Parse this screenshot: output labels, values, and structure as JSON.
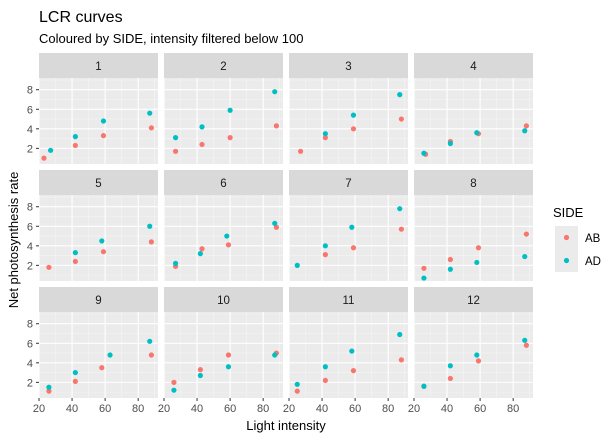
{
  "chart_data": {
    "type": "scatter",
    "title": "LCR curves",
    "subtitle": "Coloured by SIDE, intensity filtered below 100",
    "xlabel": "Light intensity",
    "ylabel": "Net photosynthesis rate",
    "xlim": [
      20,
      92
    ],
    "ylim": [
      0.4,
      9.2
    ],
    "x_ticks": [
      20,
      40,
      60,
      80
    ],
    "y_ticks": [
      2,
      4,
      6,
      8
    ],
    "grid": true,
    "facet_layout": "3 rows x 4 columns",
    "legend": {
      "title": "SIDE",
      "placement": "right",
      "entries": [
        {
          "label": "AB",
          "color": "#F8766D"
        },
        {
          "label": "AD",
          "color": "#00BFC4"
        }
      ]
    },
    "facets": [
      {
        "label": "1",
        "series": [
          {
            "name": "AB",
            "points": [
              [
                23,
                1.0
              ],
              [
                42,
                2.3
              ],
              [
                59,
                3.3
              ],
              [
                88,
                4.1
              ]
            ]
          },
          {
            "name": "AD",
            "points": [
              [
                27,
                1.8
              ],
              [
                42,
                3.2
              ],
              [
                59,
                4.8
              ],
              [
                87,
                5.6
              ]
            ]
          }
        ]
      },
      {
        "label": "2",
        "series": [
          {
            "name": "AB",
            "points": [
              [
                27,
                1.7
              ],
              [
                43,
                2.4
              ],
              [
                60,
                3.1
              ],
              [
                88,
                4.3
              ]
            ]
          },
          {
            "name": "AD",
            "points": [
              [
                27,
                3.1
              ],
              [
                43,
                4.2
              ],
              [
                60,
                5.9
              ],
              [
                87,
                7.8
              ]
            ]
          }
        ]
      },
      {
        "label": "3",
        "series": [
          {
            "name": "AB",
            "points": [
              [
                27,
                1.7
              ],
              [
                42,
                3.1
              ],
              [
                59,
                4.0
              ],
              [
                88,
                5.0
              ]
            ]
          },
          {
            "name": "AD",
            "points": [
              [
                42,
                3.5
              ],
              [
                59,
                5.4
              ],
              [
                87,
                7.5
              ]
            ]
          }
        ]
      },
      {
        "label": "4",
        "series": [
          {
            "name": "AB",
            "points": [
              [
                27,
                1.4
              ],
              [
                42,
                2.7
              ],
              [
                59,
                3.5
              ],
              [
                88,
                4.3
              ]
            ]
          },
          {
            "name": "AD",
            "points": [
              [
                26,
                1.5
              ],
              [
                42,
                2.5
              ],
              [
                58,
                3.6
              ],
              [
                87,
                3.8
              ]
            ]
          }
        ]
      },
      {
        "label": "5",
        "series": [
          {
            "name": "AB",
            "points": [
              [
                26,
                1.8
              ],
              [
                42,
                2.4
              ],
              [
                59,
                3.4
              ],
              [
                88,
                4.4
              ]
            ]
          },
          {
            "name": "AD",
            "points": [
              [
                42,
                3.3
              ],
              [
                58,
                4.5
              ],
              [
                87,
                6.0
              ]
            ]
          }
        ]
      },
      {
        "label": "6",
        "series": [
          {
            "name": "AB",
            "points": [
              [
                27,
                1.9
              ],
              [
                43,
                3.7
              ],
              [
                59,
                4.1
              ],
              [
                88,
                5.9
              ]
            ]
          },
          {
            "name": "AD",
            "points": [
              [
                27,
                2.2
              ],
              [
                42,
                3.2
              ],
              [
                58,
                5.0
              ],
              [
                87,
                6.3
              ]
            ]
          }
        ]
      },
      {
        "label": "7",
        "series": [
          {
            "name": "AB",
            "points": [
              [
                42,
                3.1
              ],
              [
                59,
                3.8
              ],
              [
                88,
                5.7
              ]
            ]
          },
          {
            "name": "AD",
            "points": [
              [
                25,
                2.0
              ],
              [
                42,
                4.0
              ],
              [
                58,
                5.9
              ],
              [
                87,
                7.8
              ]
            ]
          }
        ]
      },
      {
        "label": "8",
        "series": [
          {
            "name": "AB",
            "points": [
              [
                26,
                1.7
              ],
              [
                42,
                2.6
              ],
              [
                59,
                3.8
              ],
              [
                88,
                5.2
              ]
            ]
          },
          {
            "name": "AD",
            "points": [
              [
                26,
                0.7
              ],
              [
                42,
                1.6
              ],
              [
                58,
                2.3
              ],
              [
                87,
                2.9
              ]
            ]
          }
        ]
      },
      {
        "label": "9",
        "series": [
          {
            "name": "AB",
            "points": [
              [
                26,
                1.1
              ],
              [
                42,
                2.1
              ],
              [
                58,
                3.5
              ],
              [
                88,
                4.8
              ]
            ]
          },
          {
            "name": "AD",
            "points": [
              [
                26,
                1.5
              ],
              [
                42,
                3.0
              ],
              [
                63,
                4.8
              ],
              [
                87,
                6.2
              ]
            ]
          }
        ]
      },
      {
        "label": "10",
        "series": [
          {
            "name": "AB",
            "points": [
              [
                26,
                2.0
              ],
              [
                42,
                3.3
              ],
              [
                59,
                4.8
              ],
              [
                88,
                5.0
              ]
            ]
          },
          {
            "name": "AD",
            "points": [
              [
                26,
                1.2
              ],
              [
                42,
                2.7
              ],
              [
                59,
                3.6
              ],
              [
                87,
                4.8
              ]
            ]
          }
        ]
      },
      {
        "label": "11",
        "series": [
          {
            "name": "AB",
            "points": [
              [
                25,
                1.1
              ],
              [
                42,
                2.2
              ],
              [
                59,
                3.2
              ],
              [
                88,
                4.3
              ]
            ]
          },
          {
            "name": "AD",
            "points": [
              [
                25,
                1.8
              ],
              [
                42,
                3.6
              ],
              [
                58,
                5.2
              ],
              [
                87,
                6.9
              ]
            ]
          }
        ]
      },
      {
        "label": "12",
        "series": [
          {
            "name": "AB",
            "points": [
              [
                26,
                1.6
              ],
              [
                42,
                2.4
              ],
              [
                59,
                4.2
              ],
              [
                88,
                5.8
              ]
            ]
          },
          {
            "name": "AD",
            "points": [
              [
                26,
                1.6
              ],
              [
                42,
                3.7
              ],
              [
                58,
                4.8
              ],
              [
                87,
                6.3
              ]
            ]
          }
        ]
      }
    ]
  }
}
